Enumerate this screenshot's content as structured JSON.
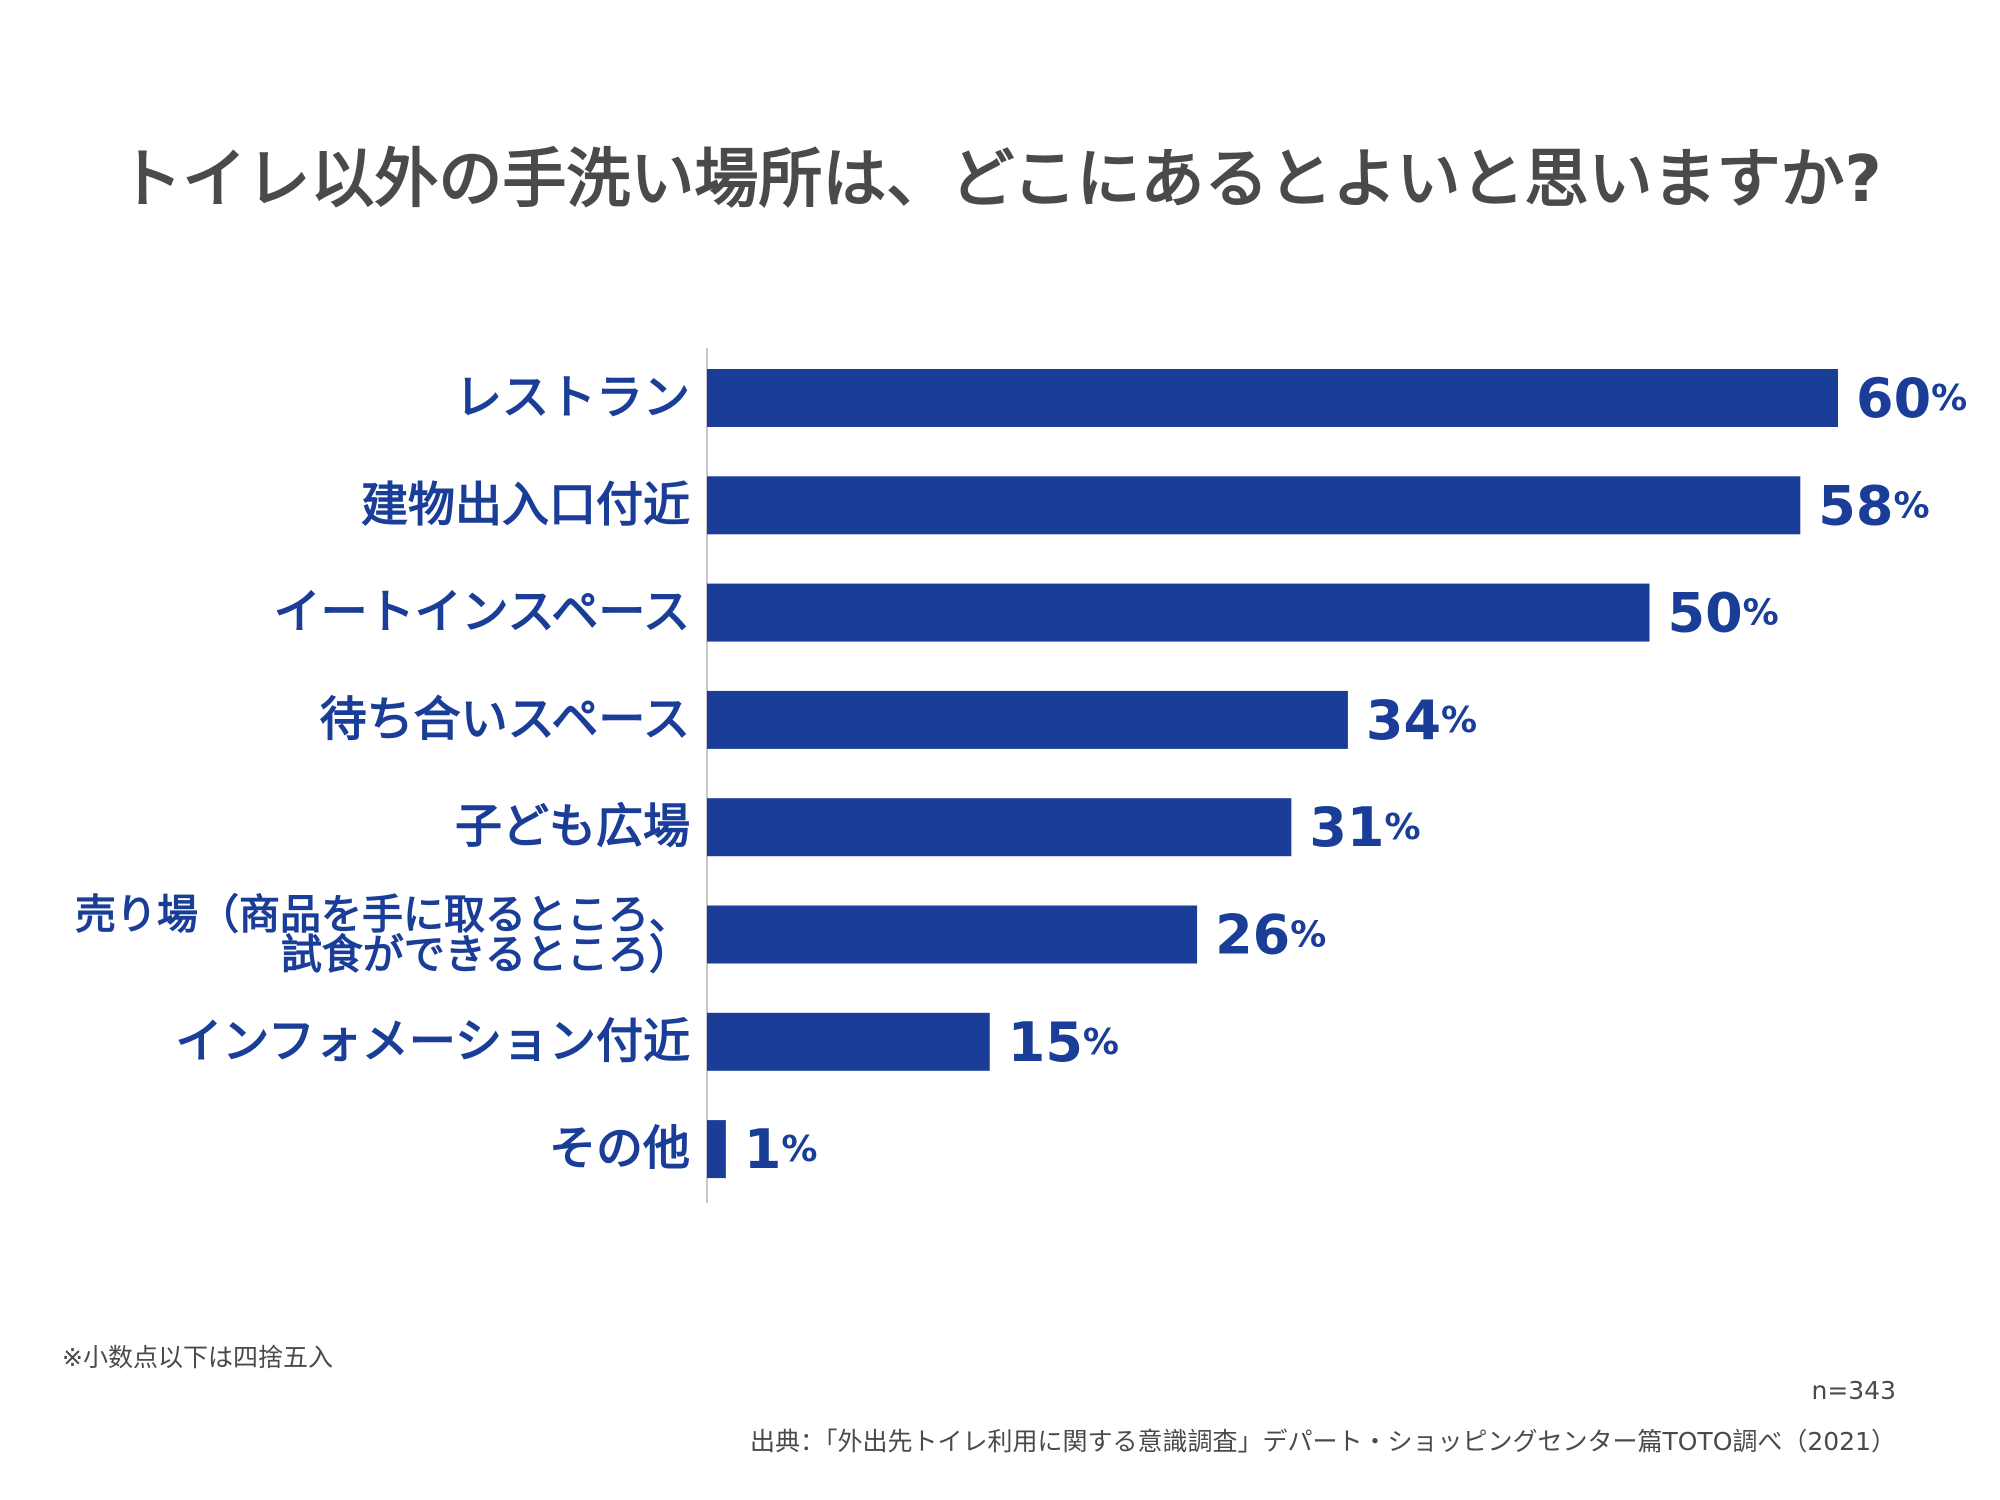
{
  "chart_data": {
    "type": "bar",
    "orientation": "horizontal",
    "title": "トイレ以外の手洗い場所は、どこにあるとよいと思いますか?",
    "categories": [
      [
        "レストラン"
      ],
      [
        "建物出入口付近"
      ],
      [
        "イートインスペース"
      ],
      [
        "待ち合いスペース"
      ],
      [
        "子ども広場"
      ],
      [
        "売り場（商品を手に取るところ、",
        "試食ができるところ）"
      ],
      [
        "インフォメーション付近"
      ],
      [
        "その他"
      ]
    ],
    "values": [
      60,
      58,
      50,
      34,
      31,
      26,
      15,
      1
    ],
    "value_suffix": "%",
    "xlim": [
      0,
      60
    ],
    "grid": false,
    "legend": "none",
    "colors": {
      "bar": "#1a3e97",
      "label": "#1a3e97",
      "title": "#4a4a4a",
      "axis": "#c8c8c8"
    }
  },
  "footnotes": {
    "note": "※小数点以下は四捨五入",
    "sample_size": "n=343",
    "source": "出典：「外出先トイレ利用に関する意識調査」デパート・ショッピングセンター篇TOTO調べ（2021）"
  }
}
